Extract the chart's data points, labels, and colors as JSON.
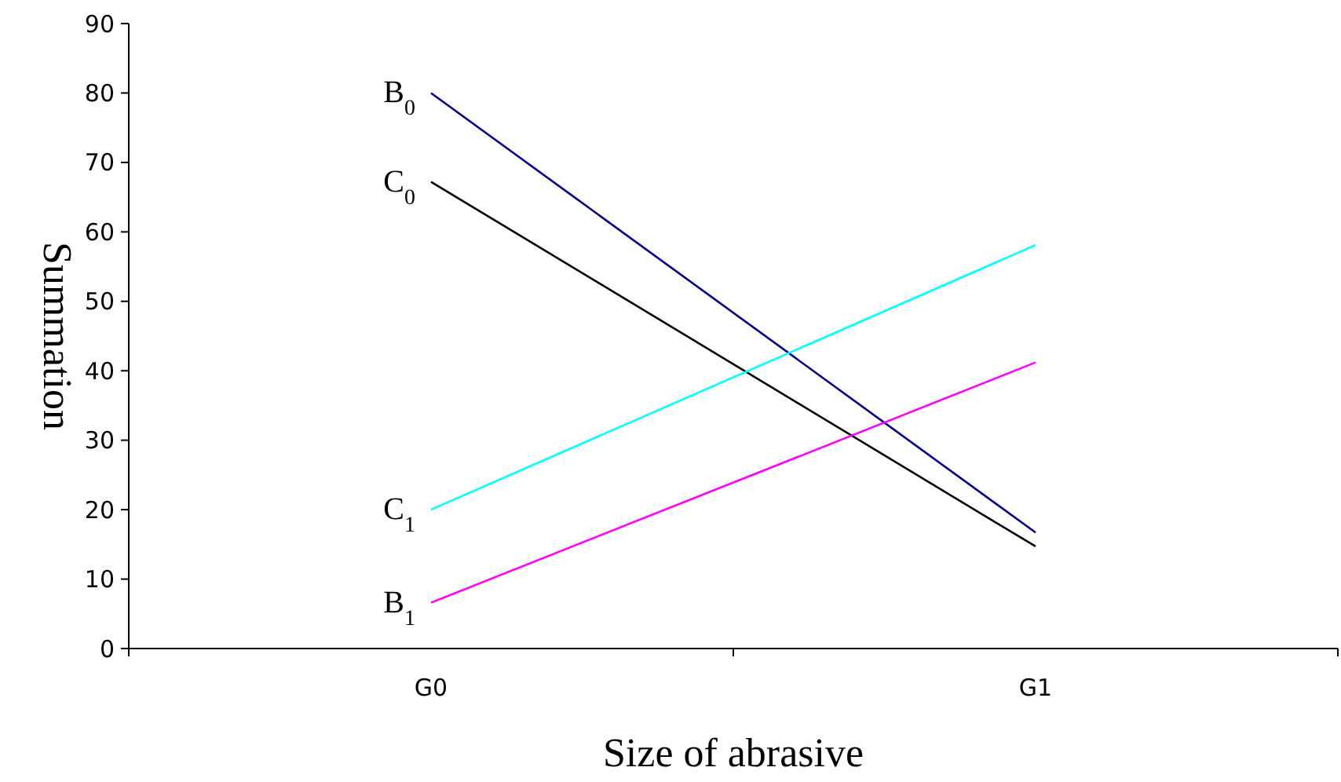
{
  "chart_data": {
    "type": "line",
    "xlabel": "Size of abrasive",
    "ylabel": "Summation",
    "categories": [
      "G0",
      "G1"
    ],
    "series": [
      {
        "name": "B$_{0}$",
        "color": "#000080",
        "values": [
          80,
          16.7
        ]
      },
      {
        "name": "C$_{0}$",
        "color": "#000000",
        "values": [
          67.2,
          14.7
        ]
      },
      {
        "name": "C$_{1}$",
        "color": "#00ffff",
        "values": [
          20,
          58.1
        ]
      },
      {
        "name": "B$_{1}$",
        "color": "#ff00ff",
        "values": [
          6.6,
          41.2
        ]
      }
    ],
    "ylim": [
      0,
      90
    ],
    "yticks": [
      0,
      10,
      20,
      30,
      40,
      50,
      60,
      70,
      80,
      90
    ],
    "grid": false,
    "marker": "none",
    "line_style": "solid"
  }
}
